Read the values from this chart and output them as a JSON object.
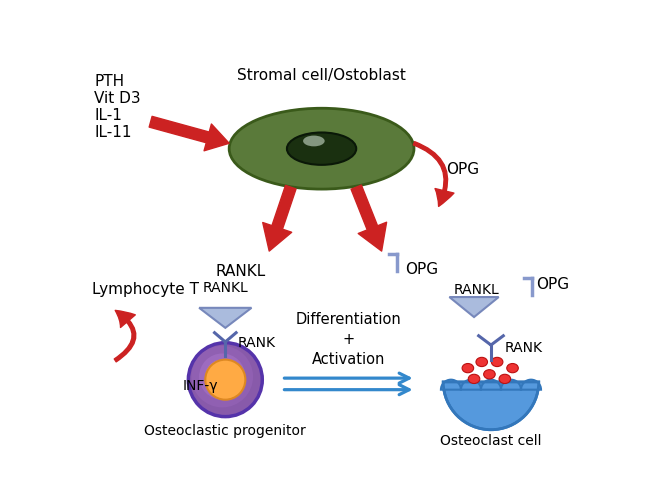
{
  "bg_color": "#ffffff",
  "stromal_cell_label": "Stromal cell/Ostoblast",
  "inputs_label": [
    "PTH",
    "Vit D3",
    "IL-1",
    "IL-11"
  ],
  "opg_label": "OPG",
  "rankl_label": "RANKL",
  "rank_label": "RANK",
  "inf_label": "INF-γ",
  "lymphocyte_label": "Lymphocyte T",
  "diff_label": "Differentiation\n+\nActivation",
  "osteoclastic_label": "Osteoclastic progenitor",
  "osteoclast_label": "Osteoclast cell",
  "arrow_red": "#cc2222",
  "arrow_red_light": "#ee6666",
  "arrow_blue": "#3388cc",
  "rankl_tri_face": "#aabbdd",
  "rankl_tri_edge": "#7788bb",
  "rank_color": "#5566aa",
  "cell_green": "#5a7a3a",
  "cell_green_edge": "#3a5a1a",
  "cell_dark": "#1a3010",
  "cell_purple_out": "#8855bb",
  "cell_purple_in": "#5533aa",
  "cell_orange": "#ffaa44",
  "cell_orange_edge": "#dd8822",
  "cell_blue": "#5599dd",
  "cell_blue_edge": "#3377bb",
  "red_dot": "#ee3333",
  "opg_hook": "#8899cc",
  "shine_color": "#ccddcc"
}
